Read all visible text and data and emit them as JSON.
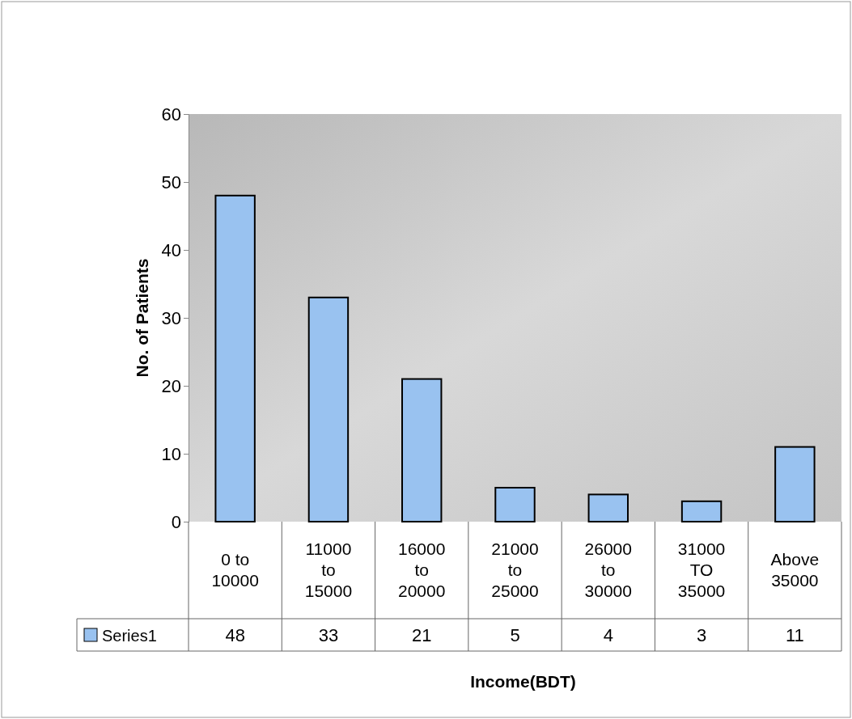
{
  "chart_data": {
    "type": "bar",
    "xlabel": "Income(BDT)",
    "ylabel": "No. of Patients",
    "categories": [
      "0 to 10000",
      "11000 to 15000",
      "16000 to 20000",
      "21000 to 25000",
      "26000 to 30000",
      "31000 TO 35000",
      "Above 35000"
    ],
    "series": [
      {
        "name": "Series1",
        "color": "#99c2f0",
        "values": [
          48,
          33,
          21,
          5,
          4,
          3,
          11
        ]
      }
    ],
    "ylim": [
      0,
      60
    ],
    "yticks": [
      0,
      10,
      20,
      30,
      40,
      50,
      60
    ],
    "data_labels": true,
    "legend": "bottom"
  }
}
